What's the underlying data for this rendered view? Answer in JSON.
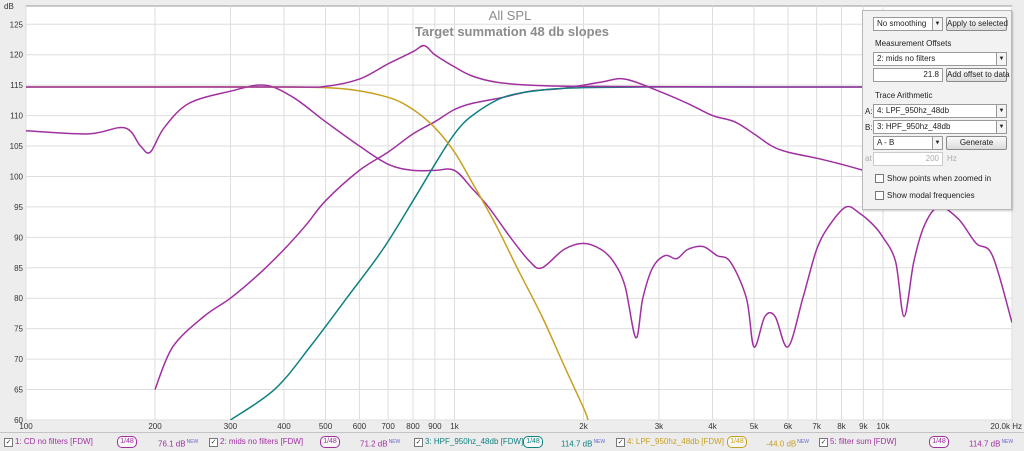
{
  "chart_data": {
    "type": "line",
    "title": "All SPL",
    "subtitle": "Target summation 48 db slopes",
    "ylabel": "dB",
    "xlabel_unit": "Hz",
    "x_scale": "log",
    "xlim": [
      100,
      20000
    ],
    "ylim": [
      60,
      128
    ],
    "x_ticks": [
      100,
      200,
      300,
      400,
      500,
      600,
      700,
      800,
      900,
      1000,
      2000,
      3000,
      4000,
      5000,
      6000,
      7000,
      8000,
      9000,
      10000,
      20000
    ],
    "x_tick_labels": [
      "100",
      "200",
      "300",
      "400",
      "500",
      "600",
      "700",
      "800",
      "900",
      "1k",
      "2k",
      "3k",
      "4k",
      "5k",
      "6k",
      "7k",
      "8k",
      "9k",
      "10k",
      "20.0k Hz"
    ],
    "y_ticks": [
      60,
      65,
      70,
      75,
      80,
      85,
      90,
      95,
      100,
      105,
      110,
      115,
      120,
      125
    ],
    "grid": true,
    "series": [
      {
        "name": "CD no filters [FDW]",
        "color": "#a030a0",
        "points": [
          [
            100,
            107.5
          ],
          [
            140,
            107
          ],
          [
            170,
            108
          ],
          [
            185,
            105
          ],
          [
            195,
            104
          ],
          [
            210,
            108
          ],
          [
            240,
            112
          ],
          [
            300,
            114
          ],
          [
            360,
            115
          ],
          [
            420,
            113
          ],
          [
            500,
            109
          ],
          [
            600,
            105
          ],
          [
            700,
            102
          ],
          [
            800,
            101
          ],
          [
            900,
            101
          ],
          [
            1000,
            101
          ],
          [
            1100,
            98
          ],
          [
            1200,
            95
          ],
          [
            1350,
            90
          ],
          [
            1500,
            86
          ],
          [
            1600,
            85
          ],
          [
            1800,
            88
          ],
          [
            2000,
            89
          ],
          [
            2200,
            88
          ],
          [
            2350,
            86
          ],
          [
            2500,
            82
          ],
          [
            2650,
            73.5
          ],
          [
            2750,
            80
          ],
          [
            2900,
            85
          ],
          [
            3100,
            87
          ],
          [
            3300,
            86.5
          ],
          [
            3500,
            88
          ],
          [
            3800,
            88.5
          ],
          [
            4100,
            87
          ],
          [
            4400,
            86
          ],
          [
            4800,
            80
          ],
          [
            5000,
            72
          ],
          [
            5300,
            77
          ],
          [
            5600,
            77
          ],
          [
            6000,
            72
          ],
          [
            6500,
            80
          ],
          [
            7000,
            88
          ],
          [
            7500,
            92
          ],
          [
            8200,
            95
          ],
          [
            8800,
            94
          ],
          [
            9500,
            92
          ],
          [
            10000,
            90
          ],
          [
            10700,
            86
          ],
          [
            11200,
            77
          ],
          [
            11800,
            86
          ],
          [
            12500,
            92
          ],
          [
            13500,
            95
          ],
          [
            15000,
            93
          ],
          [
            16500,
            89
          ],
          [
            18000,
            87
          ],
          [
            20000,
            76
          ]
        ]
      },
      {
        "name": "mids no filters [FDW]",
        "color": "#a030a0",
        "points": [
          [
            200,
            65
          ],
          [
            220,
            72
          ],
          [
            260,
            77
          ],
          [
            300,
            80
          ],
          [
            350,
            84
          ],
          [
            400,
            88
          ],
          [
            450,
            92
          ],
          [
            500,
            96
          ],
          [
            600,
            101
          ],
          [
            700,
            104
          ],
          [
            800,
            107
          ],
          [
            900,
            109
          ],
          [
            1000,
            111
          ],
          [
            1100,
            112
          ],
          [
            1300,
            113
          ],
          [
            1500,
            114
          ],
          [
            1800,
            114.5
          ],
          [
            2200,
            115.5
          ],
          [
            2500,
            116
          ],
          [
            3000,
            114
          ],
          [
            3500,
            112
          ],
          [
            4000,
            110
          ],
          [
            4500,
            109
          ],
          [
            5000,
            107
          ],
          [
            5500,
            105
          ],
          [
            6000,
            104
          ],
          [
            7000,
            103
          ],
          [
            8000,
            102
          ],
          [
            9000,
            101
          ],
          [
            10000,
            100
          ],
          [
            12000,
            98
          ],
          [
            14000,
            97
          ],
          [
            16000,
            96
          ],
          [
            18000,
            95
          ],
          [
            20000,
            95
          ]
        ]
      },
      {
        "name": "HPF_950hz_48db [FDW]",
        "color": "#108080",
        "points": [
          [
            300,
            60
          ],
          [
            380,
            65
          ],
          [
            460,
            72
          ],
          [
            560,
            80
          ],
          [
            680,
            88
          ],
          [
            800,
            96
          ],
          [
            900,
            102
          ],
          [
            1000,
            107
          ],
          [
            1100,
            110
          ],
          [
            1300,
            113
          ],
          [
            1600,
            114.2
          ],
          [
            2000,
            114.6
          ],
          [
            3000,
            114.7
          ],
          [
            5000,
            114.7
          ],
          [
            10000,
            114.7
          ],
          [
            20000,
            114.7
          ]
        ]
      },
      {
        "name": "LPF_950hz_48db [FDW]",
        "color": "#c8a020",
        "points": [
          [
            100,
            114.7
          ],
          [
            200,
            114.7
          ],
          [
            400,
            114.7
          ],
          [
            550,
            114.4
          ],
          [
            700,
            113
          ],
          [
            800,
            111
          ],
          [
            900,
            108
          ],
          [
            1000,
            104
          ],
          [
            1100,
            99
          ],
          [
            1250,
            92
          ],
          [
            1400,
            85
          ],
          [
            1600,
            77
          ],
          [
            1800,
            69
          ],
          [
            2000,
            62
          ],
          [
            2050,
            60
          ]
        ]
      },
      {
        "name": "filter sum [FDW]",
        "color": "#a030a0",
        "points": [
          [
            100,
            114.7
          ],
          [
            400,
            114.7
          ],
          [
            500,
            114.8
          ],
          [
            600,
            116
          ],
          [
            700,
            118.5
          ],
          [
            800,
            120.5
          ],
          [
            850,
            121.5
          ],
          [
            900,
            120
          ],
          [
            1000,
            118
          ],
          [
            1100,
            116.5
          ],
          [
            1250,
            115.5
          ],
          [
            1500,
            115
          ],
          [
            2000,
            114.8
          ],
          [
            5000,
            114.7
          ],
          [
            20000,
            114.7
          ]
        ]
      }
    ]
  },
  "panel": {
    "smoothing": "No smoothing",
    "apply_label": "Apply to selected",
    "offsets_label": "Measurement Offsets",
    "offset_target": "2: mids no filters",
    "offset_value": "21.8",
    "add_offset_label": "Add offset to data",
    "arith_label": "Trace Arithmetic",
    "a_label": "A:",
    "a_value": "4: LPF_950hz_48db",
    "b_label": "B:",
    "b_value": "3: HPF_950hz_48db",
    "op_value": "A - B",
    "generate_label": "Generate",
    "freq_prefix": "at",
    "freq_value": "200",
    "freq_unit": "Hz",
    "show_points_label": "Show points when zoomed in",
    "show_modal_label": "Show modal frequencies"
  },
  "legend": [
    {
      "label": "1: CD no filters [FDW]",
      "smoothing": "1/48",
      "value": "76.1 dB",
      "tag": "NEW",
      "color": "#a030a0",
      "checked": true
    },
    {
      "label": "2: mids no filters [FDW]",
      "smoothing": "1/48",
      "value": "71.2 dB",
      "tag": "NEW",
      "color": "#a030a0",
      "checked": true
    },
    {
      "label": "3: HPF_950hz_48db [FDW]",
      "smoothing": "1/48",
      "value": "114.7 dB",
      "tag": "NEW",
      "color": "#108080",
      "checked": true
    },
    {
      "label": "4: LPF_950hz_48db [FDW]",
      "smoothing": "1/48",
      "value": "-44.0 dB",
      "tag": "NEW",
      "color": "#c8a020",
      "checked": true
    },
    {
      "label": "5: filter sum [FDW]",
      "smoothing": "1/48",
      "value": "114.7 dB",
      "tag": "NEW",
      "color": "#a030a0",
      "checked": true
    }
  ]
}
